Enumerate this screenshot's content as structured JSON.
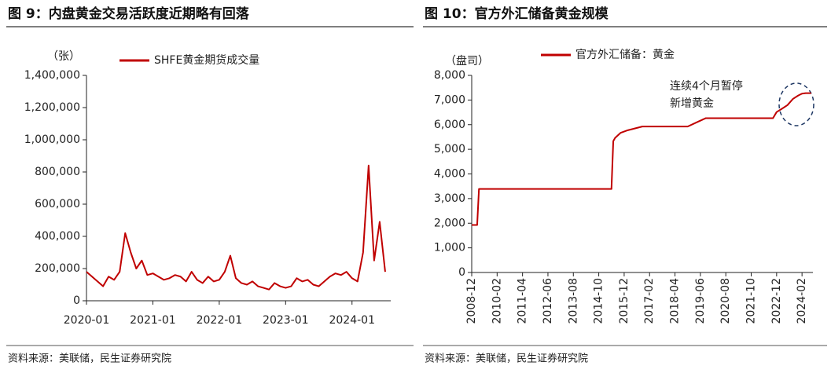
{
  "chart_data": [
    {
      "type": "line",
      "title": "图 9：内盘黄金交易活跃度近期略有回落",
      "yunit": "（张）",
      "source": "资料来源：美联储，民生证券研究院",
      "x": [
        "2020-01",
        "2020-02",
        "2020-03",
        "2020-04",
        "2020-05",
        "2020-06",
        "2020-07",
        "2020-08",
        "2020-09",
        "2020-10",
        "2020-11",
        "2020-12",
        "2021-01",
        "2021-02",
        "2021-03",
        "2021-04",
        "2021-05",
        "2021-06",
        "2021-07",
        "2021-08",
        "2021-09",
        "2021-10",
        "2021-11",
        "2021-12",
        "2022-01",
        "2022-02",
        "2022-03",
        "2022-04",
        "2022-05",
        "2022-06",
        "2022-07",
        "2022-08",
        "2022-09",
        "2022-10",
        "2022-11",
        "2022-12",
        "2023-01",
        "2023-02",
        "2023-03",
        "2023-04",
        "2023-05",
        "2023-06",
        "2023-07",
        "2023-08",
        "2023-09",
        "2023-10",
        "2023-11",
        "2023-12",
        "2024-01",
        "2024-02",
        "2024-03",
        "2024-04",
        "2024-05",
        "2024-06",
        "2024-07"
      ],
      "series": [
        {
          "name": "SHFE黄金期货成交量",
          "color": "#c00000",
          "values": [
            180000,
            150000,
            120000,
            90000,
            150000,
            130000,
            180000,
            420000,
            300000,
            200000,
            250000,
            160000,
            170000,
            150000,
            130000,
            140000,
            160000,
            150000,
            120000,
            180000,
            130000,
            110000,
            150000,
            120000,
            130000,
            180000,
            280000,
            140000,
            110000,
            100000,
            120000,
            90000,
            80000,
            70000,
            110000,
            90000,
            80000,
            90000,
            140000,
            120000,
            130000,
            100000,
            90000,
            120000,
            150000,
            170000,
            160000,
            180000,
            140000,
            120000,
            300000,
            840000,
            250000,
            490000,
            180000
          ]
        }
      ],
      "xlim": [
        "2020-01",
        "2024-08"
      ],
      "xticks": [
        "2020-01",
        "2021-01",
        "2022-01",
        "2023-01",
        "2024-01"
      ],
      "ylim": [
        0,
        1400000
      ],
      "yticks": [
        0,
        {
          "value": 200000,
          "label": "200,000"
        },
        {
          "value": 400000,
          "label": "400,000"
        },
        {
          "value": 600000,
          "label": "600,000"
        },
        {
          "value": 800000,
          "label": "800,000"
        },
        {
          "value": 1000000,
          "label": "1,000,000"
        },
        {
          "value": 1200000,
          "label": "1,200,000"
        },
        {
          "value": 1400000,
          "label": "1,400,000"
        }
      ]
    },
    {
      "type": "line",
      "title": "图 10：官方外汇储备黄金规模",
      "yunit": "（盘司）",
      "source": "资料来源：美联储，民生证券研究院",
      "annotation": [
        "连续4个月暂停",
        "新增黄金"
      ],
      "x": [
        "2008-12",
        "2009-03",
        "2009-04",
        "2015-05",
        "2015-06",
        "2015-07",
        "2015-10",
        "2016-02",
        "2016-10",
        "2018-11",
        "2019-03",
        "2019-09",
        "2022-10",
        "2022-12",
        "2023-03",
        "2023-06",
        "2023-09",
        "2023-12",
        "2024-02",
        "2024-04",
        "2024-07"
      ],
      "series": [
        {
          "name": "官方外汇储备：黄金",
          "color": "#c00000",
          "values": [
            1929,
            1929,
            3389,
            3389,
            5331,
            5461,
            5666,
            5773,
            5924,
            5924,
            6062,
            6264,
            6264,
            6512,
            6650,
            6795,
            7046,
            7187,
            7258,
            7280,
            7280
          ]
        }
      ],
      "xlim": [
        "2008-12",
        "2024-08"
      ],
      "xticks": [
        "2008-12",
        "2010-02",
        "2011-04",
        "2012-06",
        "2013-08",
        "2014-10",
        "2015-12",
        "2017-02",
        "2018-04",
        "2019-06",
        "2020-08",
        "2021-10",
        "2022-12",
        "2024-02"
      ],
      "ylim": [
        0,
        8000
      ],
      "yticks": [
        0,
        {
          "value": 1000,
          "label": "1,000"
        },
        {
          "value": 2000,
          "label": "2,000"
        },
        {
          "value": 3000,
          "label": "3,000"
        },
        {
          "value": 4000,
          "label": "4,000"
        },
        {
          "value": 5000,
          "label": "5,000"
        },
        {
          "value": 6000,
          "label": "6,000"
        },
        {
          "value": 7000,
          "label": "7,000"
        },
        {
          "value": 8000,
          "label": "8,000"
        }
      ],
      "xtick_rotation": -90
    }
  ]
}
